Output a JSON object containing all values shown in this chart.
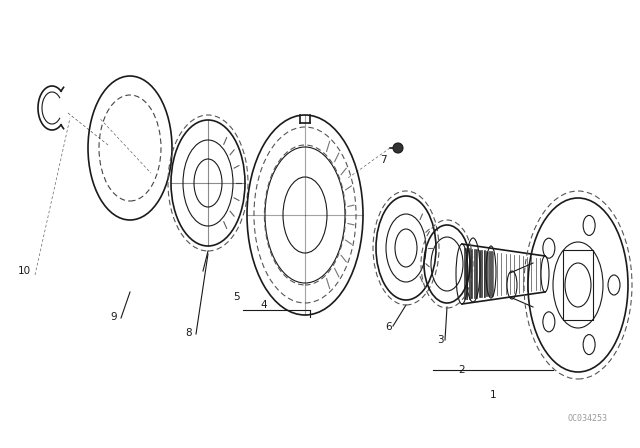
{
  "bg_color": "#ffffff",
  "line_color": "#1a1a1a",
  "fig_width": 6.4,
  "fig_height": 4.48,
  "dpi": 100,
  "watermark": "OC034253",
  "watermark_fontsize": 6.0
}
